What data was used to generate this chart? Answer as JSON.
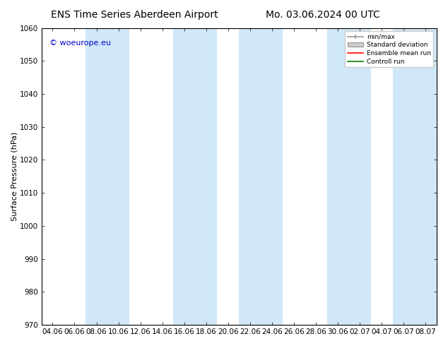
{
  "title_left": "ENS Time Series Aberdeen Airport",
  "title_right": "Mo. 03.06.2024 00 UTC",
  "ylabel": "Surface Pressure (hPa)",
  "watermark": "© woeurope.eu",
  "ylim": [
    970,
    1060
  ],
  "yticks": [
    970,
    980,
    990,
    1000,
    1010,
    1020,
    1030,
    1040,
    1050,
    1060
  ],
  "x_labels": [
    "04.06",
    "06.06",
    "08.06",
    "10.06",
    "12.06",
    "14.06",
    "16.06",
    "18.06",
    "20.06",
    "22.06",
    "24.06",
    "26.06",
    "28.06",
    "30.06",
    "02.07",
    "04.07",
    "06.07",
    "08.07"
  ],
  "shade_color": "#d0e8f8",
  "shade_alpha": 1.0,
  "bg_color": "#ffffff",
  "plot_bg_color": "#ffffff",
  "legend_items": [
    {
      "label": "min/max",
      "color": "#aaaaaa",
      "style": "errorbar"
    },
    {
      "label": "Standard deviation",
      "color": "#cccccc",
      "style": "box"
    },
    {
      "label": "Ensemble mean run",
      "color": "#ff0000",
      "style": "line"
    },
    {
      "label": "Controll run",
      "color": "#008000",
      "style": "line"
    }
  ],
  "title_fontsize": 10,
  "axis_fontsize": 7.5,
  "watermark_fontsize": 8,
  "ylabel_fontsize": 8
}
